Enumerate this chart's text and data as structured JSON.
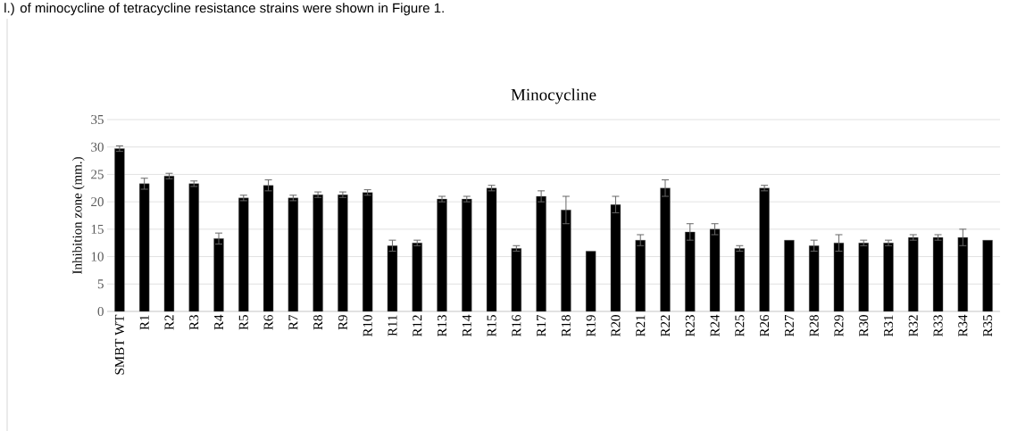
{
  "chart_data": {
    "type": "bar",
    "title": "Minocycline",
    "ylabel": "Inhibition zone (mm.)",
    "annotations": [
      "l.) of minocycline of tetracycline resistance strains were shown in Figure 1."
    ],
    "categories": [
      "SMBT WT",
      "R1",
      "R2",
      "R3",
      "R4",
      "R5",
      "R6",
      "R7",
      "R8",
      "R9",
      "R10",
      "R11",
      "R12",
      "R13",
      "R14",
      "R15",
      "R16",
      "R17",
      "R18",
      "R19",
      "R20",
      "R21",
      "R22",
      "R23",
      "R24",
      "R25",
      "R26",
      "R27",
      "R28",
      "R29",
      "R30",
      "R31",
      "R32",
      "R33",
      "R34",
      "R35"
    ],
    "values": [
      29.7,
      23.3,
      24.7,
      23.3,
      13.3,
      20.7,
      23,
      20.7,
      21.3,
      21.3,
      21.7,
      12,
      12.5,
      20.5,
      20.5,
      22.5,
      11.5,
      21,
      18.5,
      11,
      19.5,
      13,
      22.5,
      14.5,
      15,
      11.5,
      22.5,
      13,
      12,
      12.5,
      12.5,
      12.5,
      13.5,
      13.5,
      13.5,
      13
    ],
    "errors": [
      0.5,
      1,
      0.5,
      0.5,
      1,
      0.5,
      1,
      0.5,
      0.5,
      0.5,
      0.5,
      1,
      0.5,
      0.5,
      0.5,
      0.5,
      0.5,
      1,
      2.5,
      null,
      1.5,
      1,
      1.5,
      1.5,
      1,
      0.5,
      0.5,
      null,
      1,
      1.5,
      0.5,
      0.5,
      0.5,
      0.5,
      1.5,
      null
    ],
    "color": "#000000",
    "ylim": [
      0,
      35
    ],
    "yticks": [
      0,
      5,
      10,
      15,
      20,
      25,
      30,
      35
    ],
    "grid": "y"
  }
}
